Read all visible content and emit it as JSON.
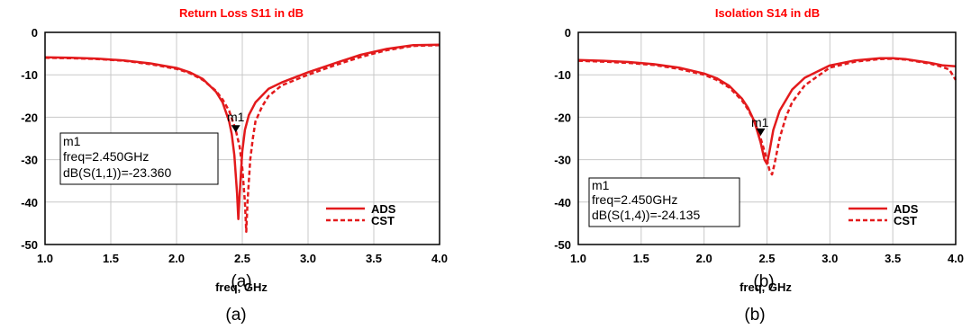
{
  "charts": [
    {
      "title": "Return Loss S11 in dB",
      "xlabel": "freq, GHz",
      "overlay_label": "(a)",
      "caption": "(a)",
      "marker": {
        "name": "m1",
        "freq": 2.45,
        "value": -23.36,
        "lines": [
          "m1",
          "freq=2.450GHz",
          "dB(S(1,1))=-23.360"
        ]
      },
      "legend": [
        "ADS",
        "CST"
      ]
    },
    {
      "title": "Isolation S14 in dB",
      "xlabel": "freq, GHz",
      "overlay_label": "(b)",
      "caption": "(b)",
      "marker": {
        "name": "m1",
        "freq": 2.45,
        "value": -24.135,
        "lines": [
          "m1",
          "freq=2.450GHz",
          "dB(S(1,4))=-24.135"
        ]
      },
      "legend": [
        "ADS",
        "CST"
      ]
    }
  ],
  "chart_data": [
    {
      "type": "line",
      "title": "Return Loss S11 in dB",
      "xlabel": "freq, GHz",
      "ylabel": "",
      "xlim": [
        1.0,
        4.0
      ],
      "ylim": [
        -50,
        0
      ],
      "xticks": [
        "1.0",
        "1.5",
        "2.0",
        "2.5",
        "3.0",
        "3.5",
        "4.0"
      ],
      "yticks": [
        "0",
        "-10",
        "-20",
        "-30",
        "-40",
        "-50"
      ],
      "grid": true,
      "legend_position": "bottom-right",
      "colors": {
        "line": "#e31a1c",
        "title": "#ff0000",
        "grid": "#c8c8c8"
      },
      "series": [
        {
          "name": "ADS",
          "style": "solid",
          "x": [
            1.0,
            1.2,
            1.4,
            1.6,
            1.8,
            2.0,
            2.1,
            2.2,
            2.3,
            2.35,
            2.4,
            2.42,
            2.44,
            2.46,
            2.47,
            2.48,
            2.5,
            2.52,
            2.55,
            2.6,
            2.7,
            2.8,
            3.0,
            3.2,
            3.4,
            3.6,
            3.8,
            4.0
          ],
          "values": [
            -5.9,
            -6.0,
            -6.2,
            -6.6,
            -7.3,
            -8.4,
            -9.4,
            -11.0,
            -14.0,
            -16.5,
            -21.0,
            -24.0,
            -29.0,
            -38.0,
            -44.0,
            -38.0,
            -28.0,
            -23.0,
            -19.5,
            -16.5,
            -13.3,
            -11.8,
            -9.4,
            -7.3,
            -5.3,
            -3.9,
            -3.0,
            -2.9
          ]
        },
        {
          "name": "CST",
          "style": "dashed",
          "x": [
            1.0,
            1.2,
            1.4,
            1.6,
            1.8,
            2.0,
            2.1,
            2.2,
            2.3,
            2.35,
            2.4,
            2.45,
            2.48,
            2.5,
            2.52,
            2.53,
            2.54,
            2.56,
            2.58,
            2.6,
            2.65,
            2.7,
            2.8,
            3.0,
            3.2,
            3.4,
            3.6,
            3.8,
            4.0
          ],
          "values": [
            -6.0,
            -6.1,
            -6.3,
            -6.7,
            -7.5,
            -8.6,
            -9.6,
            -11.2,
            -13.8,
            -15.8,
            -18.5,
            -23.0,
            -27.0,
            -32.0,
            -40.0,
            -47.0,
            -40.0,
            -30.0,
            -25.0,
            -21.0,
            -17.5,
            -15.0,
            -12.5,
            -10.0,
            -7.8,
            -5.8,
            -4.2,
            -3.2,
            -3.0
          ]
        }
      ]
    },
    {
      "type": "line",
      "title": "Isolation S14 in dB",
      "xlabel": "freq, GHz",
      "ylabel": "",
      "xlim": [
        1.0,
        4.0
      ],
      "ylim": [
        -50,
        0
      ],
      "xticks": [
        "1.0",
        "1.5",
        "2.0",
        "2.5",
        "3.0",
        "3.5",
        "4.0"
      ],
      "yticks": [
        "0",
        "-10",
        "-20",
        "-30",
        "-40",
        "-50"
      ],
      "grid": true,
      "legend_position": "bottom-right",
      "colors": {
        "line": "#e31a1c",
        "title": "#ff0000",
        "grid": "#c8c8c8"
      },
      "series": [
        {
          "name": "ADS",
          "style": "solid",
          "x": [
            1.0,
            1.2,
            1.4,
            1.6,
            1.8,
            2.0,
            2.1,
            2.2,
            2.3,
            2.35,
            2.4,
            2.45,
            2.48,
            2.5,
            2.52,
            2.55,
            2.6,
            2.7,
            2.8,
            3.0,
            3.2,
            3.4,
            3.5,
            3.6,
            3.8,
            3.9,
            4.0
          ],
          "values": [
            -6.5,
            -6.7,
            -7.0,
            -7.5,
            -8.3,
            -9.7,
            -10.8,
            -12.6,
            -15.6,
            -17.8,
            -21.0,
            -26.0,
            -30.0,
            -31.0,
            -28.0,
            -23.0,
            -18.5,
            -13.5,
            -10.7,
            -7.8,
            -6.6,
            -6.1,
            -6.1,
            -6.3,
            -7.2,
            -7.8,
            -8.0
          ]
        },
        {
          "name": "CST",
          "style": "dashed",
          "x": [
            1.0,
            1.2,
            1.4,
            1.6,
            1.8,
            2.0,
            2.1,
            2.2,
            2.3,
            2.35,
            2.4,
            2.45,
            2.5,
            2.52,
            2.54,
            2.56,
            2.6,
            2.65,
            2.7,
            2.8,
            3.0,
            3.2,
            3.4,
            3.5,
            3.6,
            3.8,
            3.9,
            3.95,
            4.0
          ],
          "values": [
            -6.7,
            -6.9,
            -7.2,
            -7.7,
            -8.6,
            -10.0,
            -11.2,
            -13.0,
            -16.0,
            -18.2,
            -21.0,
            -25.0,
            -30.0,
            -32.5,
            -33.5,
            -31.0,
            -25.0,
            -20.0,
            -16.5,
            -12.5,
            -8.3,
            -6.9,
            -6.3,
            -6.2,
            -6.4,
            -7.4,
            -8.2,
            -8.8,
            -11.2
          ]
        }
      ]
    }
  ]
}
